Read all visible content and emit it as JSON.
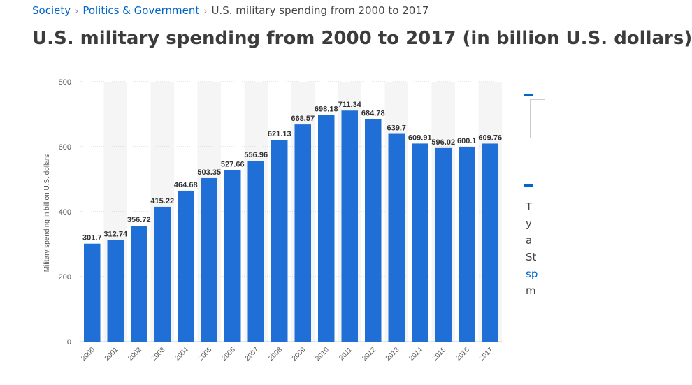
{
  "breadcrumb": {
    "items": [
      "Society",
      "Politics & Government"
    ],
    "current": "U.S. military spending from 2000 to 2017"
  },
  "title": "U.S. military spending from 2000 to 2017 (in billion U.S. dollars)",
  "side_panel": {
    "accent_color": "#0066cc",
    "text_lines": [
      "T",
      "y",
      "a",
      "St",
      "sp",
      "m"
    ]
  },
  "colors": {
    "bar": "#1f6fd6",
    "band": "#f5f5f5",
    "grid": "#cccccc",
    "text": "#333333"
  },
  "chart_data": {
    "type": "bar",
    "categories": [
      "2000",
      "2001",
      "2002",
      "2003",
      "2004",
      "2005",
      "2006",
      "2007",
      "2008",
      "2009",
      "2010",
      "2011",
      "2012",
      "2013",
      "2014",
      "2015",
      "2016",
      "2017"
    ],
    "values": [
      301.7,
      312.74,
      356.72,
      415.22,
      464.68,
      503.35,
      527.66,
      556.96,
      621.13,
      668.57,
      698.18,
      711.34,
      684.78,
      639.7,
      609.91,
      596.02,
      600.1,
      609.76
    ],
    "data_labels": [
      "301.7",
      "312.74",
      "356.72",
      "415.22",
      "464.68",
      "503.35",
      "527.66",
      "556.96",
      "621.13",
      "668.57",
      "698.18",
      "711.34",
      "684.78",
      "639.7",
      "609.91",
      "596.02",
      "600.1",
      "609.76"
    ],
    "ylabel": "Military spending in billion U.S. dollars",
    "xlabel": "",
    "ylim": [
      0,
      800
    ],
    "yticks": [
      0,
      200,
      400,
      600,
      800
    ],
    "grid": true
  }
}
